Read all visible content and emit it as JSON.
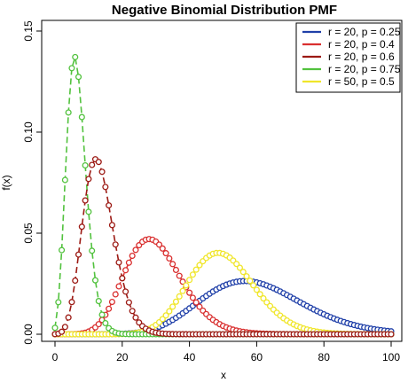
{
  "chart_data": {
    "type": "line",
    "title": "Negative Binomial Distribution PMF",
    "xlabel": "x",
    "ylabel": "f(x)",
    "xlim": [
      0,
      100
    ],
    "ylim": [
      0,
      0.15
    ],
    "x_ticks": [
      "0",
      "20",
      "40",
      "60",
      "80",
      "100"
    ],
    "y_ticks": [
      "0.00",
      "0.05",
      "0.10",
      "0.15"
    ],
    "grid": false,
    "legend_position": "top-right",
    "x_range": [
      0,
      100
    ],
    "series": [
      {
        "name": "r = 20, p = 0.25",
        "r": 20,
        "p": 0.25,
        "color": "#1f3fa8"
      },
      {
        "name": "r = 20, p = 0.4",
        "r": 20,
        "p": 0.4,
        "color": "#d92f2f"
      },
      {
        "name": "r = 20, p = 0.6",
        "r": 20,
        "p": 0.6,
        "color": "#9c1a14"
      },
      {
        "name": "r = 20, p = 0.75",
        "r": 20,
        "p": 0.75,
        "color": "#52c23e"
      },
      {
        "name": "r = 50, p = 0.5",
        "r": 50,
        "p": 0.5,
        "color": "#f0e62a"
      }
    ],
    "draw_order": [
      0,
      1,
      4,
      3,
      2
    ]
  }
}
